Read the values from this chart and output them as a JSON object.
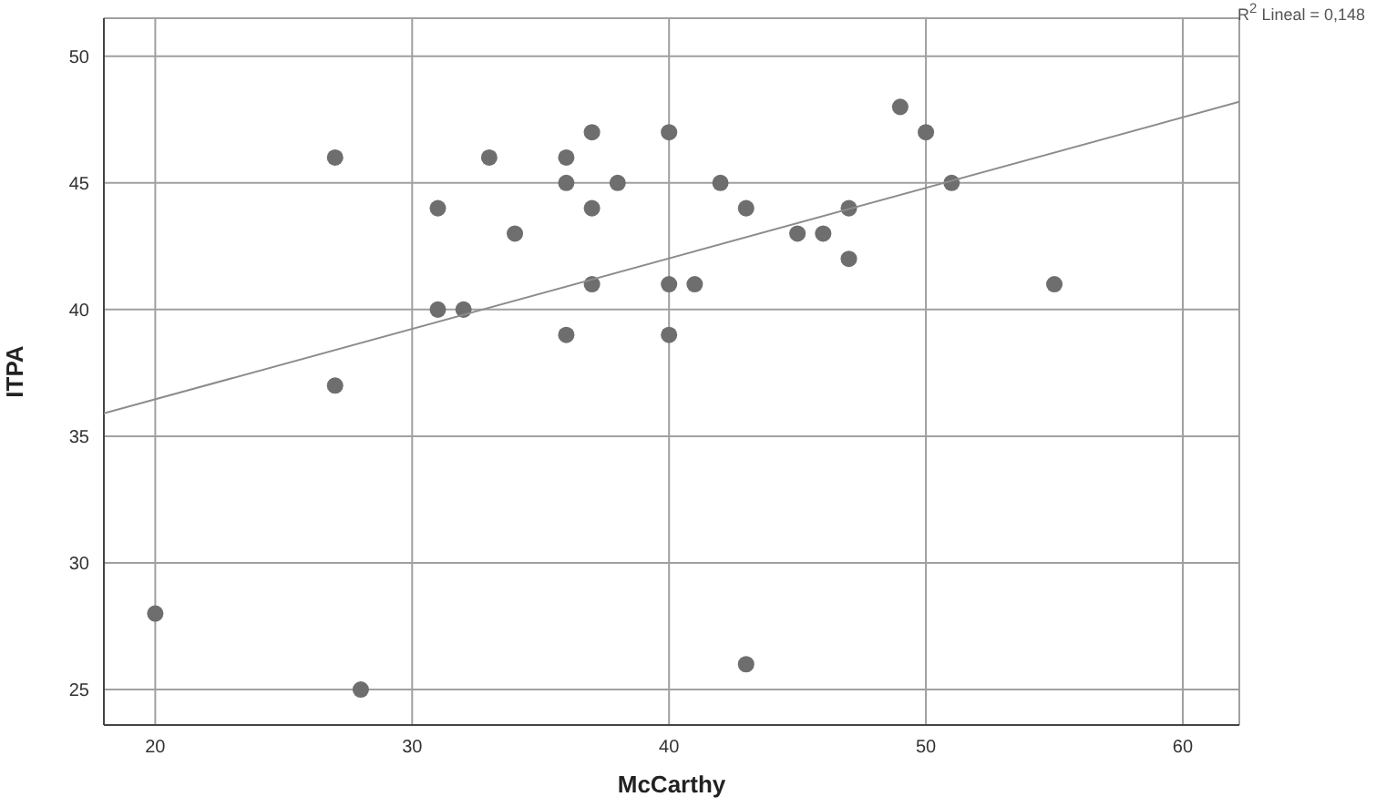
{
  "chart_data": {
    "type": "scatter",
    "xlabel": "McCarthy",
    "ylabel": "ITPA",
    "annotations": [
      "R$^{2}$ Lineal = 0,148"
    ],
    "xlim": [
      18,
      62.2
    ],
    "ylim": [
      23.6,
      51.5
    ],
    "xticks": [
      20,
      30,
      40,
      50,
      60
    ],
    "yticks": [
      25,
      30,
      35,
      40,
      45,
      50
    ],
    "grid": true,
    "marker": "circle",
    "series": [
      {
        "color": "#6e6e6e",
        "x": [
          20,
          27,
          27,
          28,
          31,
          31,
          32,
          33,
          34,
          36,
          36,
          36,
          37,
          37,
          37,
          38,
          40,
          40,
          40,
          41,
          42,
          43,
          43,
          45,
          46,
          47,
          47,
          49,
          50,
          51,
          55
        ],
        "values": [
          28,
          46,
          37,
          25,
          44,
          40,
          40,
          46,
          43,
          46,
          45,
          39,
          47,
          44,
          41,
          45,
          47,
          41,
          39,
          41,
          45,
          44,
          26,
          43,
          43,
          44,
          42,
          48,
          47,
          45,
          41
        ]
      },
      {
        "type": "line",
        "color": "#8c8c8c",
        "marker": "none",
        "line_style": "solid",
        "x": [
          18,
          62.2
        ],
        "values": [
          35.9,
          48.2
        ]
      }
    ]
  }
}
